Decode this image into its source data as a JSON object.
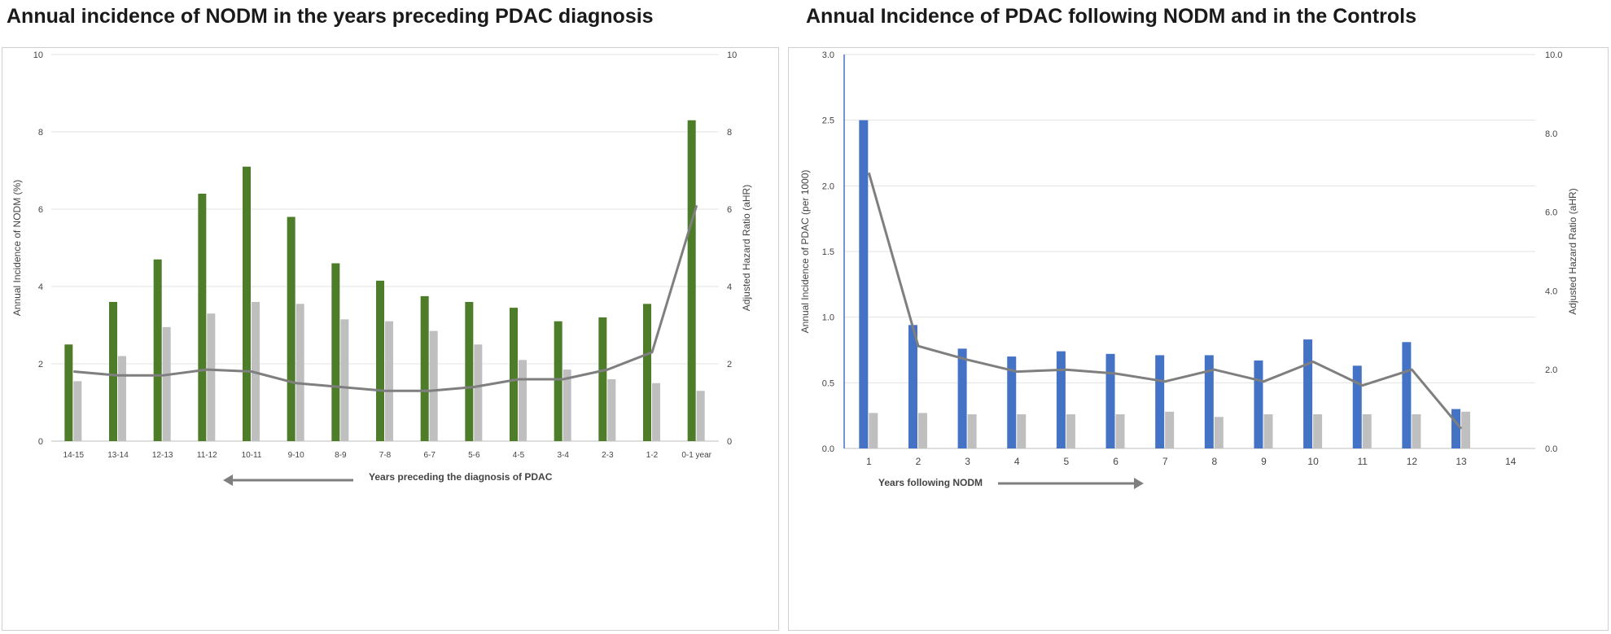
{
  "chart_data": [
    {
      "type": "bar",
      "title": "Annual incidence of NODM in the years preceding PDAC diagnosis",
      "xlabel": "Years preceding the diagnosis of PDAC",
      "ylabel": "Annual Incidence of NODM (%)",
      "y2label": "Adjusted Hazard Ratio (aHR)",
      "ylim": [
        0,
        10
      ],
      "y2lim": [
        0,
        10
      ],
      "yticks": [
        "0",
        "2",
        "4",
        "6",
        "8",
        "10"
      ],
      "y2ticks": [
        "0",
        "2",
        "4",
        "6",
        "8",
        "10"
      ],
      "categories": [
        "14-15",
        "13-14",
        "12-13",
        "11-12",
        "10-11",
        "9-10",
        "8-9",
        "7-8",
        "6-7",
        "5-6",
        "4-5",
        "3-4",
        "2-3",
        "1-2",
        "0-1 year"
      ],
      "series": [
        {
          "type": "bar",
          "color": "#4e7d2a",
          "values": [
            2.5,
            3.6,
            4.7,
            6.4,
            7.1,
            5.8,
            4.6,
            4.15,
            3.75,
            3.6,
            3.45,
            3.1,
            3.2,
            3.55,
            8.3
          ]
        },
        {
          "type": "bar",
          "color": "#bfbfbf",
          "values": [
            1.55,
            2.2,
            2.95,
            3.3,
            3.6,
            3.55,
            3.15,
            3.1,
            2.85,
            2.5,
            2.1,
            1.85,
            1.6,
            1.5,
            1.3
          ]
        },
        {
          "type": "line",
          "axis": "right",
          "color": "#7f7f7f",
          "values": [
            1.8,
            1.7,
            1.7,
            1.85,
            1.8,
            1.5,
            1.4,
            1.3,
            1.3,
            1.4,
            1.6,
            1.6,
            1.85,
            2.3,
            6.1
          ]
        }
      ],
      "grid": true
    },
    {
      "type": "bar",
      "title": "Annual Incidence of PDAC following NODM and in the Controls",
      "xlabel": "Years following NODM",
      "ylabel": "Annual Incidence of PDAC (per 1000)",
      "y2label": "Adjusted Hazard Ratio (aHR)",
      "ylim": [
        0,
        3.0
      ],
      "y2lim": [
        0,
        10
      ],
      "yticks": [
        "0.0",
        "0.5",
        "1.0",
        "1.5",
        "2.0",
        "2.5",
        "3.0"
      ],
      "y2ticks": [
        "0.0",
        "2.0",
        "4.0",
        "6.0",
        "8.0",
        "10.0"
      ],
      "categories": [
        "1",
        "2",
        "3",
        "4",
        "5",
        "6",
        "7",
        "8",
        "9",
        "10",
        "11",
        "12",
        "13",
        "14"
      ],
      "series": [
        {
          "type": "bar",
          "color": "#4472c4",
          "values": [
            2.5,
            0.94,
            0.76,
            0.7,
            0.74,
            0.72,
            0.71,
            0.71,
            0.67,
            0.83,
            0.63,
            0.81,
            0.3,
            null
          ]
        },
        {
          "type": "bar",
          "color": "#bfbfbf",
          "values": [
            0.27,
            0.27,
            0.26,
            0.26,
            0.26,
            0.26,
            0.28,
            0.24,
            0.26,
            0.26,
            0.26,
            0.26,
            0.28,
            null
          ]
        },
        {
          "type": "line",
          "axis": "right",
          "color": "#7f7f7f",
          "values": [
            7.0,
            2.6,
            2.25,
            1.95,
            2.0,
            1.9,
            1.7,
            2.0,
            1.7,
            2.2,
            1.6,
            2.0,
            0.5,
            null
          ]
        }
      ],
      "grid": true
    }
  ]
}
